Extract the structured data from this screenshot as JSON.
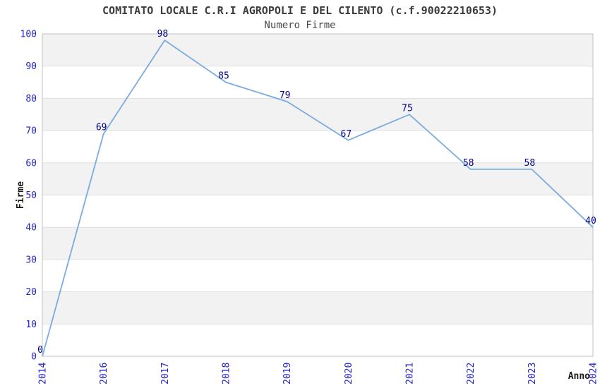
{
  "chart_data": {
    "type": "line",
    "title": "COMITATO LOCALE C.R.I AGROPOLI E DEL CILENTO (c.f.90022210653)",
    "subtitle": "Numero Firme",
    "xlabel": "Anno",
    "ylabel": "Firme",
    "categories": [
      "2014",
      "2016",
      "2017",
      "2018",
      "2019",
      "2020",
      "2021",
      "2022",
      "2023",
      "2024"
    ],
    "values": [
      0,
      69,
      98,
      85,
      79,
      67,
      75,
      58,
      58,
      40
    ],
    "point_labels": [
      "0",
      "69",
      "98",
      "85",
      "79",
      "67",
      "75",
      "58",
      "58",
      "40"
    ],
    "ylim": [
      0,
      100
    ],
    "ytick_step": 10,
    "ytick_labels": [
      "0",
      "10",
      "20",
      "30",
      "40",
      "50",
      "60",
      "70",
      "80",
      "90",
      "100"
    ],
    "grid": "horizontal-bands-alternating",
    "legend": "none",
    "colors": {
      "line": "#7aacdf",
      "tick_label": "#2323cc",
      "point_label": "#00008b",
      "band_gray": "#f2f2f2",
      "band_white": "#ffffff",
      "grid_line": "#e0e0e0",
      "plot_border": "#c0c0c0",
      "title_text": "#3c3c3c",
      "subtitle_text": "#4a4a4a",
      "axis_label_text": "#1a1a1a"
    }
  }
}
